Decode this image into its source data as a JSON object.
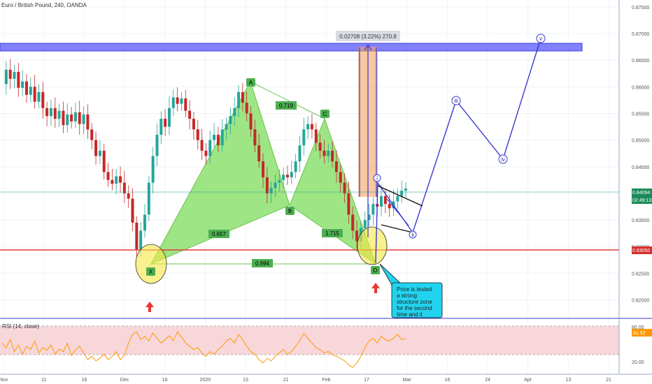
{
  "chart_data": {
    "type": "candlestick",
    "title": "Euro / British Pound, 240, OANDA",
    "price_axis": {
      "range": [
        0.8185,
        0.8755
      ],
      "ticks": [
        "0.87500",
        "0.87000",
        "0.86500",
        "0.86000",
        "0.85500",
        "0.85000",
        "0.84500",
        "0.84000",
        "0.83500",
        "0.83000",
        "0.82500",
        "0.82000"
      ]
    },
    "time_axis_labels": [
      "Nov",
      "11",
      "18",
      "Dec",
      "16",
      "2020",
      "13",
      "21",
      "Feb",
      "17",
      "Mar",
      "16",
      "24",
      "Apr",
      "13",
      "21"
    ],
    "price_series": [
      0.8605,
      0.8632,
      0.8615,
      0.8628,
      0.8598,
      0.861,
      0.8585,
      0.86,
      0.8572,
      0.859,
      0.856,
      0.8545,
      0.856,
      0.854,
      0.8555,
      0.8528,
      0.8548,
      0.8535,
      0.8552,
      0.853,
      0.8548,
      0.852,
      0.85,
      0.847,
      0.848,
      0.844,
      0.8425,
      0.8418,
      0.8432,
      0.842,
      0.84,
      0.839,
      0.8345,
      0.8295,
      0.833,
      0.836,
      0.842,
      0.847,
      0.851,
      0.854,
      0.8525,
      0.856,
      0.858,
      0.8568,
      0.8578,
      0.8555,
      0.854,
      0.852,
      0.85,
      0.848,
      0.847,
      0.85,
      0.851,
      0.849,
      0.852,
      0.853,
      0.8545,
      0.856,
      0.859,
      0.857,
      0.855,
      0.852,
      0.849,
      0.846,
      0.843,
      0.84,
      0.841,
      0.842,
      0.8425,
      0.8435,
      0.843,
      0.844,
      0.846,
      0.849,
      0.852,
      0.853,
      0.852,
      0.8495,
      0.848,
      0.847,
      0.848,
      0.846,
      0.844,
      0.842,
      0.84,
      0.836,
      0.833,
      0.831,
      0.8335,
      0.835,
      0.836,
      0.838,
      0.8375,
      0.8395,
      0.838,
      0.8372,
      0.8385,
      0.8395,
      0.8405,
      0.8409
    ],
    "horizontal_levels": [
      {
        "name": "support",
        "price": 0.8305,
        "color": "#e53935",
        "label": "0.83050"
      },
      {
        "name": "current",
        "price": 0.84094,
        "color": "#26a69a",
        "label": "0.84094",
        "countdown": "02:49:13"
      }
    ],
    "resistance_zone": {
      "price_top": 0.868,
      "price_bottom": 0.867,
      "color": "#3f3fd8"
    },
    "measure_label": "0.02708 (3.22%) 270.8",
    "harmonic_points": {
      "X": "X",
      "A": "A",
      "B": "B",
      "C": "C",
      "D": "D"
    },
    "ratios": [
      "0.719",
      "0.657",
      "1.715",
      "0.994"
    ],
    "wave_labels": [
      "i",
      "ii",
      "iii",
      "iv",
      "v"
    ],
    "annotation": "Price is tested a strong structure zone for the second time and it bounce up.",
    "rsi": {
      "label": "RSI (14, close)",
      "last": "61.52",
      "ticks": [
        "80.00",
        "20.00"
      ],
      "range": [
        10,
        90
      ],
      "band": [
        30,
        70
      ],
      "values": [
        55,
        48,
        60,
        42,
        52,
        38,
        50,
        45,
        58,
        40,
        48,
        44,
        52,
        38,
        46,
        42,
        55,
        36,
        45,
        50,
        40,
        30,
        35,
        28,
        32,
        38,
        30,
        35,
        42,
        30,
        36,
        55,
        68,
        72,
        60,
        65,
        58,
        70,
        62,
        55,
        60,
        66,
        58,
        72,
        64,
        55,
        50,
        45,
        48,
        40,
        35,
        42,
        38,
        45,
        50,
        58,
        62,
        55,
        68,
        60,
        50,
        42,
        38,
        30,
        25,
        32,
        28,
        35,
        40,
        45,
        38,
        42,
        50,
        58,
        70,
        62,
        55,
        48,
        45,
        40,
        42,
        38,
        35,
        32,
        28,
        22,
        18,
        25,
        35,
        48,
        58,
        62,
        55,
        65,
        60,
        58,
        62,
        68,
        60,
        61.52
      ]
    },
    "grid": true
  },
  "colors": {
    "up": "#26a69a",
    "down": "#c62828",
    "harmonic_fill": "#7ddc5c",
    "wave_line": "#3a3ad0",
    "ellipse": "#f5e642",
    "measure_box": "#f4a460",
    "callout_bg": "#22d3ee",
    "signal_arrow": "#e53935",
    "rsi_line": "#ff9800",
    "rsi_band": "#f8d7da"
  }
}
